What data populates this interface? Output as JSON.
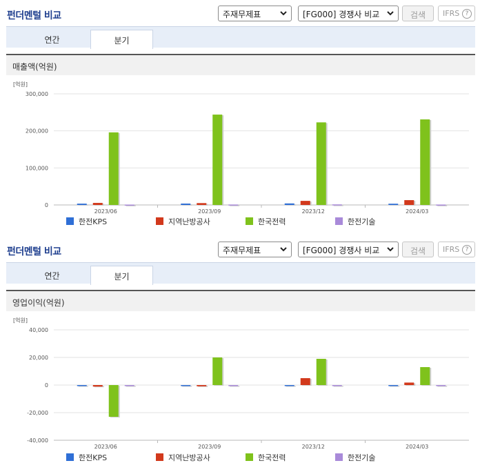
{
  "panels": [
    {
      "title": "펀더멘털 비교",
      "select_statement": "주재무제표",
      "select_compare": "[FG000] 경쟁사 비교",
      "search_label": "검색",
      "ifrs_label": "IFRS",
      "tabs": [
        {
          "label": "연간"
        },
        {
          "label": "분기"
        }
      ],
      "active_tab": "분기",
      "section_title": "매출액(억원)"
    },
    {
      "title": "펀더멘털 비교",
      "select_statement": "주재무제표",
      "select_compare": "[FG000] 경쟁사 비교",
      "search_label": "검색",
      "ifrs_label": "IFRS",
      "tabs": [
        {
          "label": "연간"
        },
        {
          "label": "분기"
        }
      ],
      "active_tab": "분기",
      "section_title": "영업이익(억원)"
    }
  ],
  "colors": {
    "한전KPS": "#2f6fd6",
    "지역난방공사": "#d2391c",
    "한국전력": "#7fc21c",
    "한전기술": "#a98ad9"
  },
  "chart_data": [
    {
      "type": "bar",
      "unit_label": "[억원]",
      "categories": [
        "2023/06",
        "2023/09",
        "2023/12",
        "2024/03"
      ],
      "yticks": [
        0,
        100000,
        200000,
        300000
      ],
      "ytick_labels": [
        "0",
        "100,000",
        "200,000",
        "300,000"
      ],
      "ylim": [
        0,
        300000
      ],
      "grid": true,
      "legend": "bottom",
      "series": [
        {
          "name": "한전KPS",
          "values": [
            3500,
            3700,
            4100,
            3300
          ]
        },
        {
          "name": "지역난방공사",
          "values": [
            5500,
            5000,
            11000,
            13000
          ]
        },
        {
          "name": "한국전력",
          "values": [
            196000,
            244000,
            223000,
            231000
          ]
        },
        {
          "name": "한전기술",
          "values": [
            1000,
            1200,
            1500,
            1100
          ]
        }
      ]
    },
    {
      "type": "bar",
      "unit_label": "[억원]",
      "categories": [
        "2023/06",
        "2023/09",
        "2023/12",
        "2024/03"
      ],
      "yticks": [
        -40000,
        -20000,
        0,
        20000,
        40000
      ],
      "ytick_labels": [
        "-40,000",
        "-20,000",
        "0",
        "20,000",
        "40,000"
      ],
      "ylim": [
        -40000,
        40000
      ],
      "grid": true,
      "legend": "bottom",
      "series": [
        {
          "name": "한전KPS",
          "values": [
            -600,
            -400,
            -300,
            -600
          ]
        },
        {
          "name": "지역난방공사",
          "values": [
            -1100,
            -900,
            5000,
            1800
          ]
        },
        {
          "name": "한국전력",
          "values": [
            -23000,
            20000,
            19000,
            13000
          ]
        },
        {
          "name": "한전기술",
          "values": [
            -100,
            -100,
            -100,
            -100
          ]
        }
      ]
    }
  ]
}
